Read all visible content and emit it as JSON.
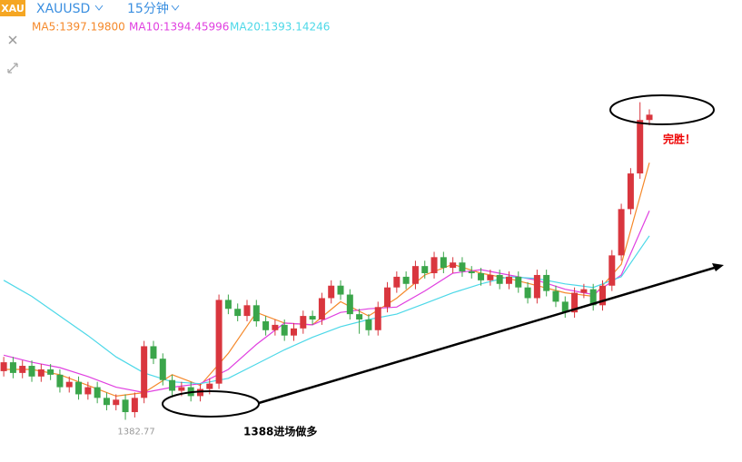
{
  "chart_data": {
    "type": "candlestick",
    "badge": "XAU",
    "title": "XAUUSD",
    "period": "15分钟",
    "up_color": "#d9363e",
    "down_color": "#3aa54a",
    "xlim": [
      -0.4,
      78.9
    ],
    "ylim": [
      1380.4,
      1404.3
    ],
    "open": [
      1385.5,
      1386.0,
      1385.4,
      1385.8,
      1385.2,
      1385.6,
      1385.3,
      1384.6,
      1384.9,
      1384.2,
      1384.6,
      1384.0,
      1383.6,
      1383.9,
      1383.2,
      1384.0,
      1386.9,
      1386.2,
      1385.0,
      1384.4,
      1384.6,
      1384.1,
      1384.5,
      1384.8,
      1389.5,
      1389.0,
      1388.6,
      1389.2,
      1388.3,
      1387.8,
      1388.1,
      1387.5,
      1387.9,
      1388.6,
      1388.4,
      1389.6,
      1390.3,
      1389.8,
      1388.7,
      1388.4,
      1387.8,
      1389.1,
      1390.2,
      1390.8,
      1390.4,
      1391.4,
      1391.0,
      1391.9,
      1391.3,
      1391.6,
      1391.1,
      1391.0,
      1390.6,
      1390.9,
      1390.4,
      1390.8,
      1390.2,
      1389.6,
      1390.9,
      1390.0,
      1389.4,
      1388.8,
      1389.9,
      1390.1,
      1389.2,
      1390.3,
      1392.0,
      1394.6,
      1396.6,
      1399.6
    ],
    "high": [
      1386.3,
      1386.3,
      1386.1,
      1386.1,
      1385.9,
      1385.9,
      1385.6,
      1385.2,
      1385.2,
      1384.9,
      1384.9,
      1384.3,
      1384.2,
      1384.2,
      1384.3,
      1387.2,
      1387.2,
      1386.5,
      1385.3,
      1384.9,
      1384.9,
      1384.8,
      1385.1,
      1389.8,
      1389.8,
      1389.3,
      1389.5,
      1389.5,
      1388.6,
      1388.4,
      1388.4,
      1388.2,
      1388.9,
      1388.9,
      1389.9,
      1390.6,
      1390.6,
      1390.1,
      1389.0,
      1388.7,
      1389.4,
      1390.5,
      1391.1,
      1391.1,
      1391.7,
      1391.7,
      1392.2,
      1392.2,
      1391.9,
      1391.9,
      1391.4,
      1391.3,
      1391.2,
      1391.2,
      1391.1,
      1391.1,
      1390.5,
      1391.2,
      1391.2,
      1390.3,
      1389.7,
      1390.2,
      1390.4,
      1390.4,
      1390.6,
      1392.3,
      1394.9,
      1396.9,
      1400.6,
      1400.2
    ],
    "low": [
      1385.2,
      1385.1,
      1385.1,
      1384.9,
      1384.9,
      1385.0,
      1384.3,
      1384.3,
      1383.9,
      1383.9,
      1383.7,
      1383.3,
      1383.3,
      1382.77,
      1382.9,
      1383.7,
      1385.9,
      1384.7,
      1384.1,
      1384.1,
      1383.8,
      1383.8,
      1384.2,
      1384.5,
      1388.7,
      1388.3,
      1388.3,
      1388.0,
      1387.5,
      1387.5,
      1387.2,
      1387.2,
      1387.6,
      1388.1,
      1388.1,
      1389.3,
      1389.5,
      1388.4,
      1387.6,
      1387.5,
      1387.5,
      1388.8,
      1389.9,
      1390.1,
      1390.1,
      1390.7,
      1390.7,
      1391.0,
      1391.0,
      1390.8,
      1390.7,
      1390.3,
      1390.3,
      1390.1,
      1390.1,
      1389.9,
      1389.3,
      1389.3,
      1389.7,
      1389.1,
      1388.5,
      1388.5,
      1389.6,
      1388.9,
      1388.9,
      1390.0,
      1391.7,
      1394.3,
      1396.3,
      1399.3
    ],
    "close": [
      1386.0,
      1385.4,
      1385.8,
      1385.2,
      1385.6,
      1385.3,
      1384.6,
      1384.9,
      1384.2,
      1384.6,
      1384.0,
      1383.6,
      1383.9,
      1383.2,
      1384.0,
      1386.9,
      1386.2,
      1385.0,
      1384.4,
      1384.6,
      1384.1,
      1384.5,
      1384.8,
      1389.5,
      1389.0,
      1388.6,
      1389.2,
      1388.3,
      1387.8,
      1388.1,
      1387.5,
      1387.9,
      1388.6,
      1388.4,
      1389.6,
      1390.3,
      1389.8,
      1388.7,
      1388.4,
      1387.8,
      1389.1,
      1390.2,
      1390.8,
      1390.4,
      1391.4,
      1391.0,
      1391.9,
      1391.3,
      1391.6,
      1391.1,
      1391.0,
      1390.6,
      1390.9,
      1390.4,
      1390.8,
      1390.2,
      1389.6,
      1390.9,
      1390.0,
      1389.4,
      1388.8,
      1389.9,
      1390.1,
      1389.2,
      1390.3,
      1392.0,
      1394.6,
      1396.6,
      1399.6,
      1399.9
    ],
    "series": [
      {
        "name": "MA5:1397.19800",
        "color": "#f5892b",
        "x": [
          0,
          3,
          6,
          9,
          12,
          15,
          18,
          21,
          24,
          27,
          30,
          33,
          36,
          39,
          42,
          45,
          48,
          51,
          54,
          57,
          60,
          63,
          66,
          69
        ],
        "values": [
          1385.6,
          1385.6,
          1385.3,
          1384.7,
          1384.1,
          1384.3,
          1385.3,
          1384.7,
          1386.5,
          1388.8,
          1388.2,
          1388.1,
          1389.4,
          1388.6,
          1389.6,
          1390.9,
          1391.5,
          1391.0,
          1390.7,
          1390.3,
          1389.9,
          1389.7,
          1391.5,
          1397.2
        ]
      },
      {
        "name": "MA10:1394.45996",
        "color": "#e040e0",
        "x": [
          0,
          3,
          6,
          9,
          12,
          15,
          18,
          21,
          24,
          27,
          30,
          33,
          36,
          39,
          42,
          45,
          48,
          51,
          54,
          57,
          60,
          63,
          66,
          69
        ],
        "values": [
          1386.4,
          1386.0,
          1385.7,
          1385.2,
          1384.6,
          1384.3,
          1384.6,
          1384.8,
          1385.6,
          1387.0,
          1388.2,
          1388.1,
          1388.8,
          1389.0,
          1389.1,
          1390.0,
          1391.0,
          1391.2,
          1390.9,
          1390.6,
          1390.1,
          1389.8,
          1390.9,
          1394.5
        ]
      },
      {
        "name": "MA20:1393.14246",
        "color": "#4dd8e8",
        "x": [
          0,
          3,
          6,
          9,
          12,
          15,
          18,
          21,
          24,
          27,
          30,
          33,
          36,
          39,
          42,
          45,
          48,
          51,
          54,
          57,
          60,
          63,
          66,
          69
        ],
        "values": [
          1390.6,
          1389.7,
          1388.6,
          1387.5,
          1386.3,
          1385.4,
          1384.9,
          1384.8,
          1385.1,
          1385.9,
          1386.7,
          1387.4,
          1388.0,
          1388.4,
          1388.7,
          1389.3,
          1389.9,
          1390.4,
          1390.8,
          1390.7,
          1390.4,
          1390.2,
          1390.8,
          1393.1
        ]
      }
    ],
    "annotations": [
      "完胜！",
      "1388进场做多"
    ]
  }
}
